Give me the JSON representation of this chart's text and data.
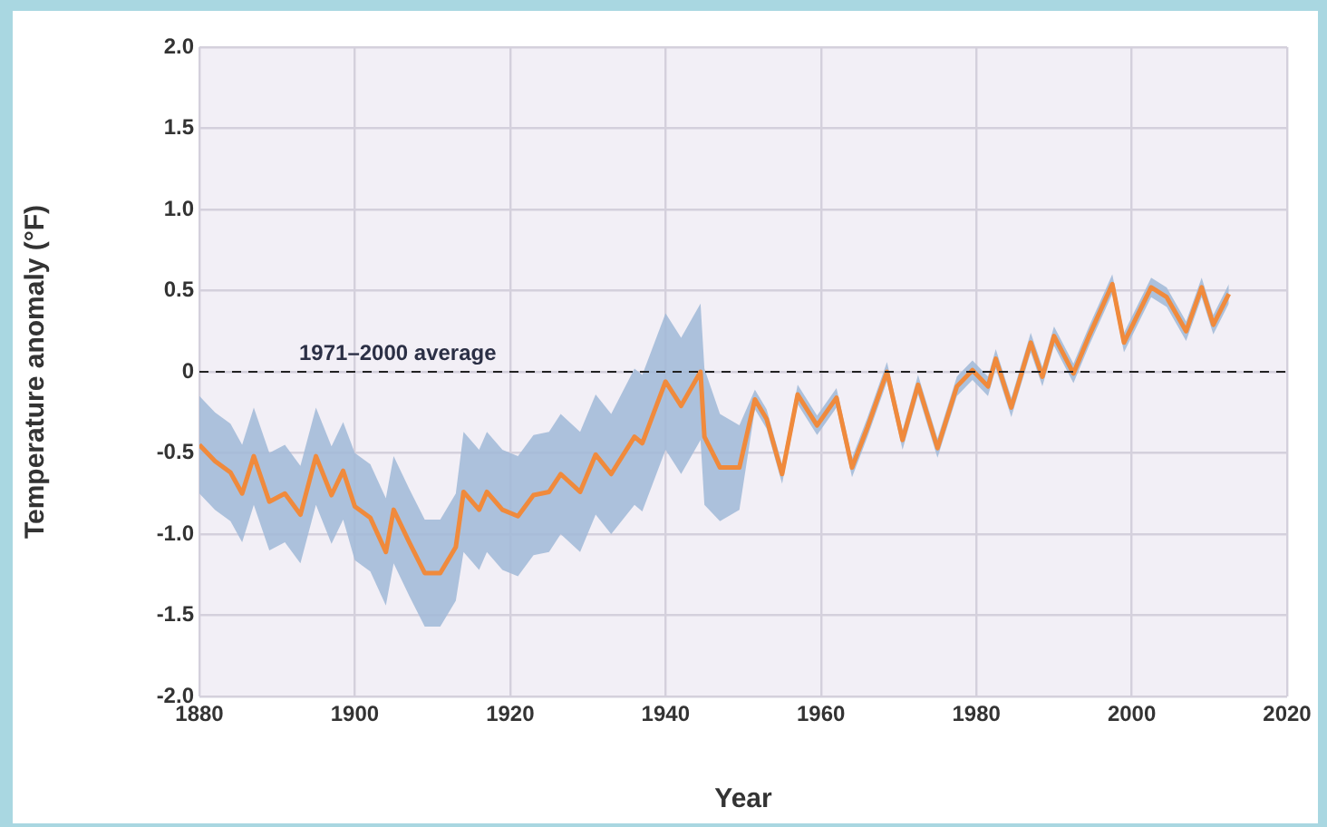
{
  "chart_data": {
    "type": "line",
    "xlabel": "Year",
    "ylabel": "Temperature anomaly (°F)",
    "x": [
      1880,
      1882,
      1884,
      1885.5,
      1887,
      1889,
      1891,
      1893,
      1895,
      1897,
      1898.5,
      1900,
      1902,
      1904,
      1905,
      1907,
      1909,
      1911,
      1913,
      1914,
      1916,
      1917,
      1919,
      1921,
      1923,
      1925,
      1926.5,
      1929,
      1931,
      1933,
      1936,
      1937,
      1940,
      1942,
      1944.5,
      1945,
      1947,
      1949.5,
      1951.5,
      1953,
      1955,
      1957,
      1959.5,
      1962,
      1964,
      1966,
      1968.5,
      1970.5,
      1972.5,
      1975,
      1977.5,
      1979.5,
      1981.5,
      1982.5,
      1984.5,
      1987,
      1988.5,
      1990,
      1992.5,
      1994.5,
      1997.5,
      1999,
      2002.5,
      2004.5,
      2007,
      2009,
      2010.5,
      2012.5
    ],
    "series": [
      {
        "color": "#f08a3c",
        "values": [
          -0.45,
          -0.55,
          -0.62,
          -0.75,
          -0.52,
          -0.8,
          -0.75,
          -0.88,
          -0.52,
          -0.76,
          -0.61,
          -0.83,
          -0.9,
          -1.11,
          -0.85,
          -1.05,
          -1.24,
          -1.24,
          -1.08,
          -0.74,
          -0.85,
          -0.74,
          -0.85,
          -0.89,
          -0.76,
          -0.74,
          -0.63,
          -0.74,
          -0.51,
          -0.63,
          -0.4,
          -0.44,
          -0.06,
          -0.21,
          0.0,
          -0.4,
          -0.59,
          -0.59,
          -0.17,
          -0.29,
          -0.63,
          -0.14,
          -0.33,
          -0.16,
          -0.59,
          -0.34,
          0.0,
          -0.42,
          -0.08,
          -0.47,
          -0.09,
          0.01,
          -0.09,
          0.08,
          -0.22,
          0.18,
          -0.03,
          0.22,
          -0.01,
          0.22,
          0.54,
          0.18,
          0.52,
          0.46,
          0.25,
          0.52,
          0.29,
          0.48
        ],
        "lower": [
          -0.75,
          -0.85,
          -0.92,
          -1.05,
          -0.82,
          -1.1,
          -1.05,
          -1.18,
          -0.82,
          -1.06,
          -0.91,
          -1.16,
          -1.23,
          -1.44,
          -1.18,
          -1.38,
          -1.57,
          -1.57,
          -1.41,
          -1.11,
          -1.22,
          -1.11,
          -1.22,
          -1.26,
          -1.13,
          -1.11,
          -1.0,
          -1.11,
          -0.88,
          -1.0,
          -0.82,
          -0.86,
          -0.48,
          -0.63,
          -0.42,
          -0.82,
          -0.92,
          -0.85,
          -0.23,
          -0.35,
          -0.69,
          -0.2,
          -0.39,
          -0.22,
          -0.65,
          -0.4,
          -0.06,
          -0.48,
          -0.14,
          -0.53,
          -0.15,
          -0.05,
          -0.15,
          0.02,
          -0.28,
          0.12,
          -0.09,
          0.16,
          -0.07,
          0.16,
          0.48,
          0.12,
          0.46,
          0.4,
          0.19,
          0.46,
          0.23,
          0.42
        ],
        "upper": [
          -0.15,
          -0.25,
          -0.32,
          -0.45,
          -0.22,
          -0.5,
          -0.45,
          -0.58,
          -0.22,
          -0.46,
          -0.31,
          -0.5,
          -0.57,
          -0.78,
          -0.52,
          -0.72,
          -0.91,
          -0.91,
          -0.75,
          -0.37,
          -0.48,
          -0.37,
          -0.48,
          -0.52,
          -0.39,
          -0.37,
          -0.26,
          -0.37,
          -0.14,
          -0.26,
          0.02,
          -0.02,
          0.36,
          0.21,
          0.42,
          0.02,
          -0.26,
          -0.33,
          -0.11,
          -0.23,
          -0.57,
          -0.08,
          -0.27,
          -0.1,
          -0.53,
          -0.28,
          0.06,
          -0.36,
          -0.02,
          -0.41,
          -0.03,
          0.07,
          -0.03,
          0.14,
          -0.16,
          0.24,
          0.03,
          0.28,
          0.05,
          0.28,
          0.6,
          0.24,
          0.58,
          0.52,
          0.31,
          0.58,
          0.35,
          0.54
        ]
      }
    ],
    "xlim": [
      1880,
      2020
    ],
    "xticks": [
      1880,
      1900,
      1920,
      1940,
      1960,
      1980,
      2000,
      2020
    ],
    "ylim": [
      -2,
      2
    ],
    "yticks": [
      {
        "value": -2,
        "label": "-2.0"
      },
      {
        "value": -1.5,
        "label": "-1.5"
      },
      {
        "value": -1,
        "label": "-1.0"
      },
      {
        "value": -0.5,
        "label": "-0.5"
      },
      0,
      {
        "value": 0.5,
        "label": "0.5"
      },
      {
        "value": 1,
        "label": "1.0"
      },
      {
        "value": 1.5,
        "label": "1.5"
      },
      {
        "value": 2,
        "label": "2.0"
      }
    ],
    "ref_lines": [
      {
        "axis": "y",
        "value": 0,
        "label": "1971–2000 average",
        "color": "#222222",
        "line_style": "dashed"
      }
    ],
    "grid": true,
    "legend": false,
    "marker": "none",
    "line_style": "solid"
  }
}
